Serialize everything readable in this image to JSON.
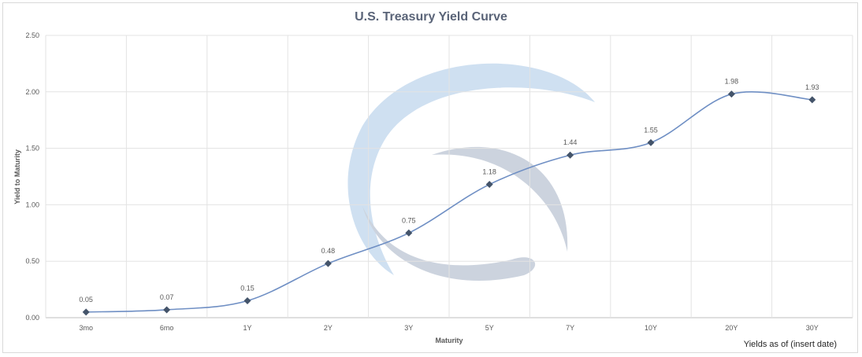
{
  "chart_data": {
    "type": "line",
    "title": "U.S. Treasury Yield Curve",
    "xlabel": "Maturity",
    "ylabel": "Yield to Maturity",
    "categories": [
      "3mo",
      "6mo",
      "1Y",
      "2Y",
      "3Y",
      "5Y",
      "7Y",
      "10Y",
      "20Y",
      "30Y"
    ],
    "series": [
      {
        "values": [
          0.05,
          0.07,
          0.15,
          0.48,
          0.75,
          1.18,
          1.44,
          1.55,
          1.98,
          1.93
        ]
      }
    ],
    "data_labels": [
      "0.05",
      "0.07",
      "0.15",
      "0.48",
      "0.75",
      "1.18",
      "1.44",
      "1.55",
      "1.98",
      "1.93"
    ],
    "ylim": [
      0,
      2.5
    ],
    "yticks": [
      "0.00",
      "0.50",
      "1.00",
      "1.50",
      "2.00",
      "2.50"
    ],
    "grid": true,
    "legend": "none",
    "smooth": true,
    "line_color": "#6f8fc4",
    "marker_color": "#44546a",
    "marker": "diamond"
  },
  "footnote": "Yields as of (insert date)",
  "watermark": {
    "outer_color": "#cfe0f1",
    "inner_color": "#ccd3de"
  }
}
